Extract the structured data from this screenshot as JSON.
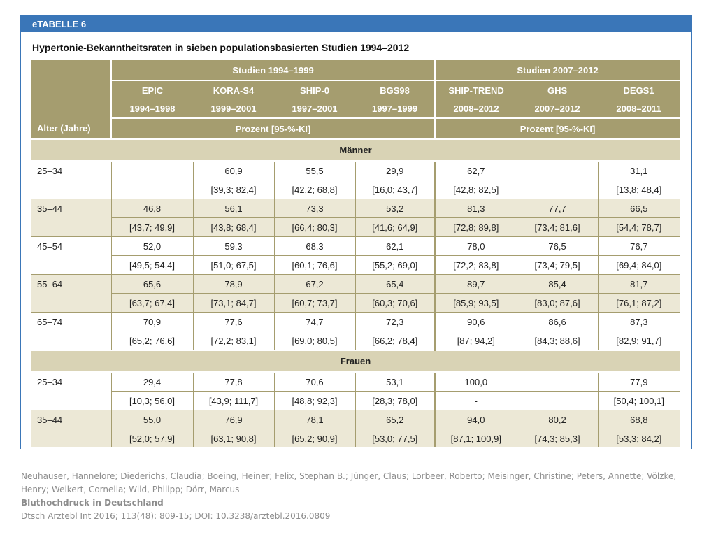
{
  "title_bar": "eTABELLE 6",
  "heading": "Hypertonie-Bekanntheitsraten in sieben populationsbasierten Studien 1994–2012",
  "header": {
    "age_label": "Alter (Jahre)",
    "group1": "Studien 1994–1999",
    "group2": "Studien 2007–2012",
    "unit1": "Prozent [95-%-KI]",
    "unit2": "Prozent [95-%-KI]",
    "studies": [
      {
        "name": "EPIC",
        "years": "1994–1998"
      },
      {
        "name": "KORA-S4",
        "years": "1999–2001"
      },
      {
        "name": "SHIP-0",
        "years": "1997–2001"
      },
      {
        "name": "BGS98",
        "years": "1997–1999"
      },
      {
        "name": "SHIP-TREND",
        "years": "2008–2012"
      },
      {
        "name": "GHS",
        "years": "2007–2012"
      },
      {
        "name": "DEGS1",
        "years": "2008–2011"
      }
    ]
  },
  "sections": [
    {
      "label": "Männer",
      "groups": [
        {
          "age": "25–34",
          "values": [
            "",
            "60,9",
            "55,5",
            "29,9",
            "62,7",
            "",
            "31,1"
          ],
          "ci": [
            "",
            "[39,3; 82,4]",
            "[42,2; 68,8]",
            "[16,0; 43,7]",
            "[42,8; 82,5]",
            "",
            "[13,8; 48,4]"
          ]
        },
        {
          "age": "35–44",
          "values": [
            "46,8",
            "56,1",
            "73,3",
            "53,2",
            "81,3",
            "77,7",
            "66,5"
          ],
          "ci": [
            "[43,7; 49,9]",
            "[43,8; 68,4]",
            "[66,4; 80,3]",
            "[41,6; 64,9]",
            "[72,8; 89,8]",
            "[73,4; 81,6]",
            "[54,4; 78,7]"
          ]
        },
        {
          "age": "45–54",
          "values": [
            "52,0",
            "59,3",
            "68,3",
            "62,1",
            "78,0",
            "76,5",
            "76,7"
          ],
          "ci": [
            "[49,5; 54,4]",
            "[51,0; 67,5]",
            "[60,1; 76,6]",
            "[55,2; 69,0]",
            "[72,2; 83,8]",
            "[73,4; 79,5]",
            "[69,4; 84,0]"
          ]
        },
        {
          "age": "55–64",
          "values": [
            "65,6",
            "78,9",
            "67,2",
            "65,4",
            "89,7",
            "85,4",
            "81,7"
          ],
          "ci": [
            "[63,7; 67,4]",
            "[73,1; 84,7]",
            "[60,7; 73,7]",
            "[60,3; 70,6]",
            "[85,9; 93,5]",
            "[83,0; 87,6]",
            "[76,1; 87,2]"
          ]
        },
        {
          "age": "65–74",
          "values": [
            "70,9",
            "77,6",
            "74,7",
            "72,3",
            "90,6",
            "86,6",
            "87,3"
          ],
          "ci": [
            "[65,2; 76,6]",
            "[72,2; 83,1]",
            "[69,0; 80,5]",
            "[66,2; 78,4]",
            "[87; 94,2]",
            "[84,3; 88,6]",
            "[82,9; 91,7]"
          ]
        }
      ]
    },
    {
      "label": "Frauen",
      "groups": [
        {
          "age": "25–34",
          "values": [
            "29,4",
            "77,8",
            "70,6",
            "53,1",
            "100,0",
            "",
            "77,9"
          ],
          "ci": [
            "[10,3; 56,0]",
            "[43,9; 111,7]",
            "[48,8; 92,3]",
            "[28,3; 78,0]",
            "-",
            "",
            "[50,4; 100,1]"
          ]
        },
        {
          "age": "35–44",
          "values": [
            "55,0",
            "76,9",
            "78,1",
            "65,2",
            "94,0",
            "80,2",
            "68,8"
          ],
          "ci": [
            "[52,0; 57,9]",
            "[63,1; 90,8]",
            "[65,2; 90,9]",
            "[53,0; 77,5]",
            "[87,1; 100,9]",
            "[74,3; 85,3]",
            "[53,3; 84,2]"
          ]
        }
      ]
    }
  ],
  "citation": {
    "authors": "Neuhauser, Hannelore; Diederichs, Claudia; Boeing, Heiner; Felix, Stephan B.; Jünger, Claus; Lorbeer, Roberto; Meisinger, Christine; Peters, Annette; Völzke, Henry; Weikert, Cornelia; Wild, Philipp; Dörr, Marcus",
    "title": "Bluthochdruck in Deutschland",
    "source": "Dtsch Arztebl Int 2016; 113(48): 809-15; DOI: 10.3238/arztebl.2016.0809"
  },
  "colors": {
    "title_bar": "#3a76b8",
    "header_bg": "#a59d6f",
    "section_bg": "#d9d3b5",
    "row_tint": "#ece8d6"
  }
}
